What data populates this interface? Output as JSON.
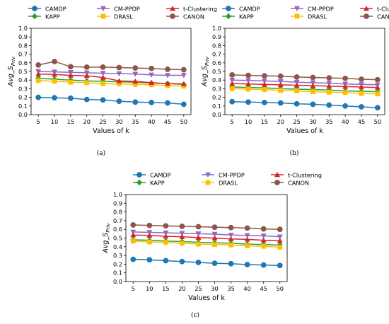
{
  "chart_data": [
    {
      "type": "line",
      "panel_label": "(a)",
      "xlabel": "Values of k",
      "ylabel_main": "Avg_S",
      "ylabel_sub": "Priv",
      "x": [
        5,
        10,
        15,
        20,
        25,
        30,
        35,
        40,
        45,
        50
      ],
      "ylim": [
        0,
        1.0
      ],
      "yticks": [
        "0.0",
        "0.1",
        "0.2",
        "0.3",
        "0.4",
        "0.5",
        "0.6",
        "0.7",
        "0.8",
        "0.9",
        "1.0"
      ],
      "xticks": [
        "5",
        "10",
        "15",
        "20",
        "25",
        "30",
        "35",
        "40",
        "45",
        "50"
      ],
      "grid": false,
      "legend_position": "top",
      "series": [
        {
          "name": "CAMDP",
          "color": "#1f77b4",
          "marker": "circle",
          "values": [
            0.2,
            0.195,
            0.19,
            0.175,
            0.17,
            0.155,
            0.145,
            0.14,
            0.135,
            0.12
          ]
        },
        {
          "name": "KAPP",
          "color": "#2ca02c",
          "marker": "diamond",
          "values": [
            0.42,
            0.41,
            0.4,
            0.39,
            0.385,
            0.38,
            0.375,
            0.365,
            0.36,
            0.35
          ]
        },
        {
          "name": "CM-PPDP",
          "color": "#9467bd",
          "marker": "triangle-down",
          "values": [
            0.5,
            0.495,
            0.49,
            0.485,
            0.48,
            0.475,
            0.47,
            0.46,
            0.455,
            0.455
          ]
        },
        {
          "name": "DRASL",
          "color": "#ffbf00",
          "marker": "square",
          "values": [
            0.395,
            0.385,
            0.375,
            0.37,
            0.36,
            0.355,
            0.35,
            0.345,
            0.335,
            0.33
          ]
        },
        {
          "name": "t-Clustering",
          "color": "#d62728",
          "marker": "triangle-up",
          "values": [
            0.47,
            0.465,
            0.455,
            0.45,
            0.43,
            0.39,
            0.385,
            0.37,
            0.36,
            0.355
          ]
        },
        {
          "name": "CANON",
          "color": "#8c564b",
          "marker": "circle",
          "values": [
            0.575,
            0.615,
            0.555,
            0.55,
            0.55,
            0.545,
            0.54,
            0.535,
            0.525,
            0.52
          ]
        }
      ]
    },
    {
      "type": "line",
      "panel_label": "(b)",
      "xlabel": "Values of k",
      "ylabel_main": "Avg_S",
      "ylabel_sub": "Priv",
      "x": [
        5,
        10,
        15,
        20,
        25,
        30,
        35,
        40,
        45,
        50
      ],
      "ylim": [
        0,
        1.0
      ],
      "yticks": [
        "0.0",
        "0.1",
        "0.2",
        "0.3",
        "0.4",
        "0.5",
        "0.6",
        "0.7",
        "0.8",
        "0.9",
        "1.0"
      ],
      "xticks": [
        "5",
        "10",
        "15",
        "20",
        "25",
        "30",
        "35",
        "40",
        "45",
        "50"
      ],
      "grid": false,
      "legend_position": "top",
      "series": [
        {
          "name": "CAMDP",
          "color": "#1f77b4",
          "marker": "circle",
          "values": [
            0.15,
            0.145,
            0.14,
            0.135,
            0.125,
            0.12,
            0.11,
            0.1,
            0.09,
            0.08
          ]
        },
        {
          "name": "KAPP",
          "color": "#2ca02c",
          "marker": "diamond",
          "values": [
            0.32,
            0.315,
            0.31,
            0.3,
            0.295,
            0.29,
            0.285,
            0.275,
            0.27,
            0.265
          ]
        },
        {
          "name": "CM-PPDP",
          "color": "#9467bd",
          "marker": "triangle-down",
          "values": [
            0.4,
            0.395,
            0.39,
            0.385,
            0.375,
            0.37,
            0.365,
            0.355,
            0.35,
            0.345
          ]
        },
        {
          "name": "DRASL",
          "color": "#ffbf00",
          "marker": "square",
          "values": [
            0.3,
            0.295,
            0.29,
            0.28,
            0.275,
            0.265,
            0.26,
            0.255,
            0.245,
            0.24
          ]
        },
        {
          "name": "t-Clustering",
          "color": "#d62728",
          "marker": "triangle-up",
          "values": [
            0.36,
            0.355,
            0.35,
            0.345,
            0.34,
            0.335,
            0.33,
            0.325,
            0.32,
            0.315
          ]
        },
        {
          "name": "CANON",
          "color": "#8c564b",
          "marker": "circle",
          "values": [
            0.46,
            0.455,
            0.45,
            0.445,
            0.435,
            0.43,
            0.425,
            0.42,
            0.41,
            0.405
          ]
        }
      ]
    },
    {
      "type": "line",
      "panel_label": "(c)",
      "xlabel": "Values of k",
      "ylabel_main": "Avg_S",
      "ylabel_sub": "Priv",
      "x": [
        5,
        10,
        15,
        20,
        25,
        30,
        35,
        40,
        45,
        50
      ],
      "ylim": [
        0,
        1.0
      ],
      "yticks": [
        "0.0",
        "0.1",
        "0.2",
        "0.3",
        "0.4",
        "0.5",
        "0.6",
        "0.7",
        "0.8",
        "0.9",
        "1.0"
      ],
      "xticks": [
        "5",
        "10",
        "15",
        "20",
        "25",
        "30",
        "35",
        "40",
        "45",
        "50"
      ],
      "grid": false,
      "legend_position": "top",
      "series": [
        {
          "name": "CAMDP",
          "color": "#1f77b4",
          "marker": "circle",
          "values": [
            0.255,
            0.25,
            0.24,
            0.23,
            0.22,
            0.21,
            0.205,
            0.195,
            0.19,
            0.185
          ]
        },
        {
          "name": "KAPP",
          "color": "#2ca02c",
          "marker": "diamond",
          "values": [
            0.48,
            0.475,
            0.465,
            0.46,
            0.45,
            0.445,
            0.44,
            0.43,
            0.425,
            0.42
          ]
        },
        {
          "name": "CM-PPDP",
          "color": "#9467bd",
          "marker": "triangle-down",
          "values": [
            0.57,
            0.565,
            0.56,
            0.555,
            0.55,
            0.545,
            0.535,
            0.53,
            0.525,
            0.515
          ]
        },
        {
          "name": "DRASL",
          "color": "#ffbf00",
          "marker": "square",
          "values": [
            0.465,
            0.455,
            0.45,
            0.44,
            0.43,
            0.425,
            0.42,
            0.41,
            0.405,
            0.395
          ]
        },
        {
          "name": "t-Clustering",
          "color": "#d62728",
          "marker": "triangle-up",
          "values": [
            0.535,
            0.53,
            0.52,
            0.515,
            0.505,
            0.5,
            0.49,
            0.485,
            0.475,
            0.47
          ]
        },
        {
          "name": "CANON",
          "color": "#8c564b",
          "marker": "circle",
          "values": [
            0.65,
            0.645,
            0.64,
            0.635,
            0.63,
            0.625,
            0.62,
            0.615,
            0.605,
            0.6
          ]
        }
      ]
    }
  ]
}
